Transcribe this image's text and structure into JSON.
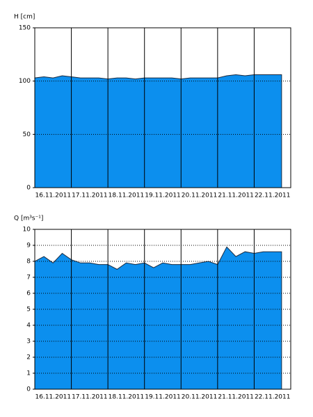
{
  "chart_data": [
    {
      "type": "area",
      "y_label": "H [cm]",
      "color": "#0c8fee",
      "grid": true,
      "xlim": [
        0,
        7
      ],
      "ylim": [
        0,
        150
      ],
      "yticks": [
        0,
        50,
        100,
        150
      ],
      "xticks": [
        {
          "value": 0.5,
          "label": "16.11.2011"
        },
        {
          "value": 1.5,
          "label": "17.11.2011"
        },
        {
          "value": 2.5,
          "label": "18.11.2011"
        },
        {
          "value": 3.5,
          "label": "19.11.2011"
        },
        {
          "value": 4.5,
          "label": "20.11.2011"
        },
        {
          "value": 5.5,
          "label": "21.11.2011"
        },
        {
          "value": 6.5,
          "label": "22.11.2011"
        }
      ],
      "x": [
        0,
        0.25,
        0.5,
        0.75,
        1,
        1.25,
        1.5,
        1.75,
        2,
        2.25,
        2.5,
        2.75,
        3,
        3.25,
        3.5,
        3.75,
        4,
        4.25,
        4.5,
        4.75,
        5,
        5.25,
        5.5,
        5.75,
        6,
        6.25,
        6.5,
        6.75
      ],
      "values": [
        103,
        104,
        103,
        105,
        104,
        103,
        103,
        103,
        102,
        103,
        103,
        102,
        103,
        103,
        103,
        103,
        102,
        103,
        103,
        103,
        103,
        105,
        106,
        105,
        106,
        106,
        106,
        106
      ]
    },
    {
      "type": "area",
      "y_label": "Q [m³s⁻¹]",
      "color": "#0c8fee",
      "grid": true,
      "xlim": [
        0,
        7
      ],
      "ylim": [
        0,
        10
      ],
      "yticks": [
        0,
        1,
        2,
        3,
        4,
        5,
        6,
        7,
        8,
        9,
        10
      ],
      "xticks": [
        {
          "value": 0.5,
          "label": "16.11.2011"
        },
        {
          "value": 1.5,
          "label": "17.11.2011"
        },
        {
          "value": 2.5,
          "label": "18.11.2011"
        },
        {
          "value": 3.5,
          "label": "19.11.2011"
        },
        {
          "value": 4.5,
          "label": "20.11.2011"
        },
        {
          "value": 5.5,
          "label": "21.11.2011"
        },
        {
          "value": 6.5,
          "label": "22.11.2011"
        }
      ],
      "x": [
        0,
        0.25,
        0.5,
        0.75,
        1,
        1.25,
        1.5,
        1.75,
        2,
        2.25,
        2.5,
        2.75,
        3,
        3.25,
        3.5,
        3.75,
        4,
        4.25,
        4.5,
        4.75,
        5,
        5.25,
        5.5,
        5.75,
        6,
        6.25,
        6.5,
        6.75
      ],
      "values": [
        8.0,
        8.3,
        7.9,
        8.5,
        8.1,
        7.9,
        7.9,
        7.8,
        7.8,
        7.5,
        7.9,
        7.8,
        7.9,
        7.6,
        7.9,
        7.8,
        7.8,
        7.8,
        7.9,
        8.0,
        7.8,
        8.9,
        8.3,
        8.6,
        8.5,
        8.6,
        8.6,
        8.6
      ]
    }
  ]
}
